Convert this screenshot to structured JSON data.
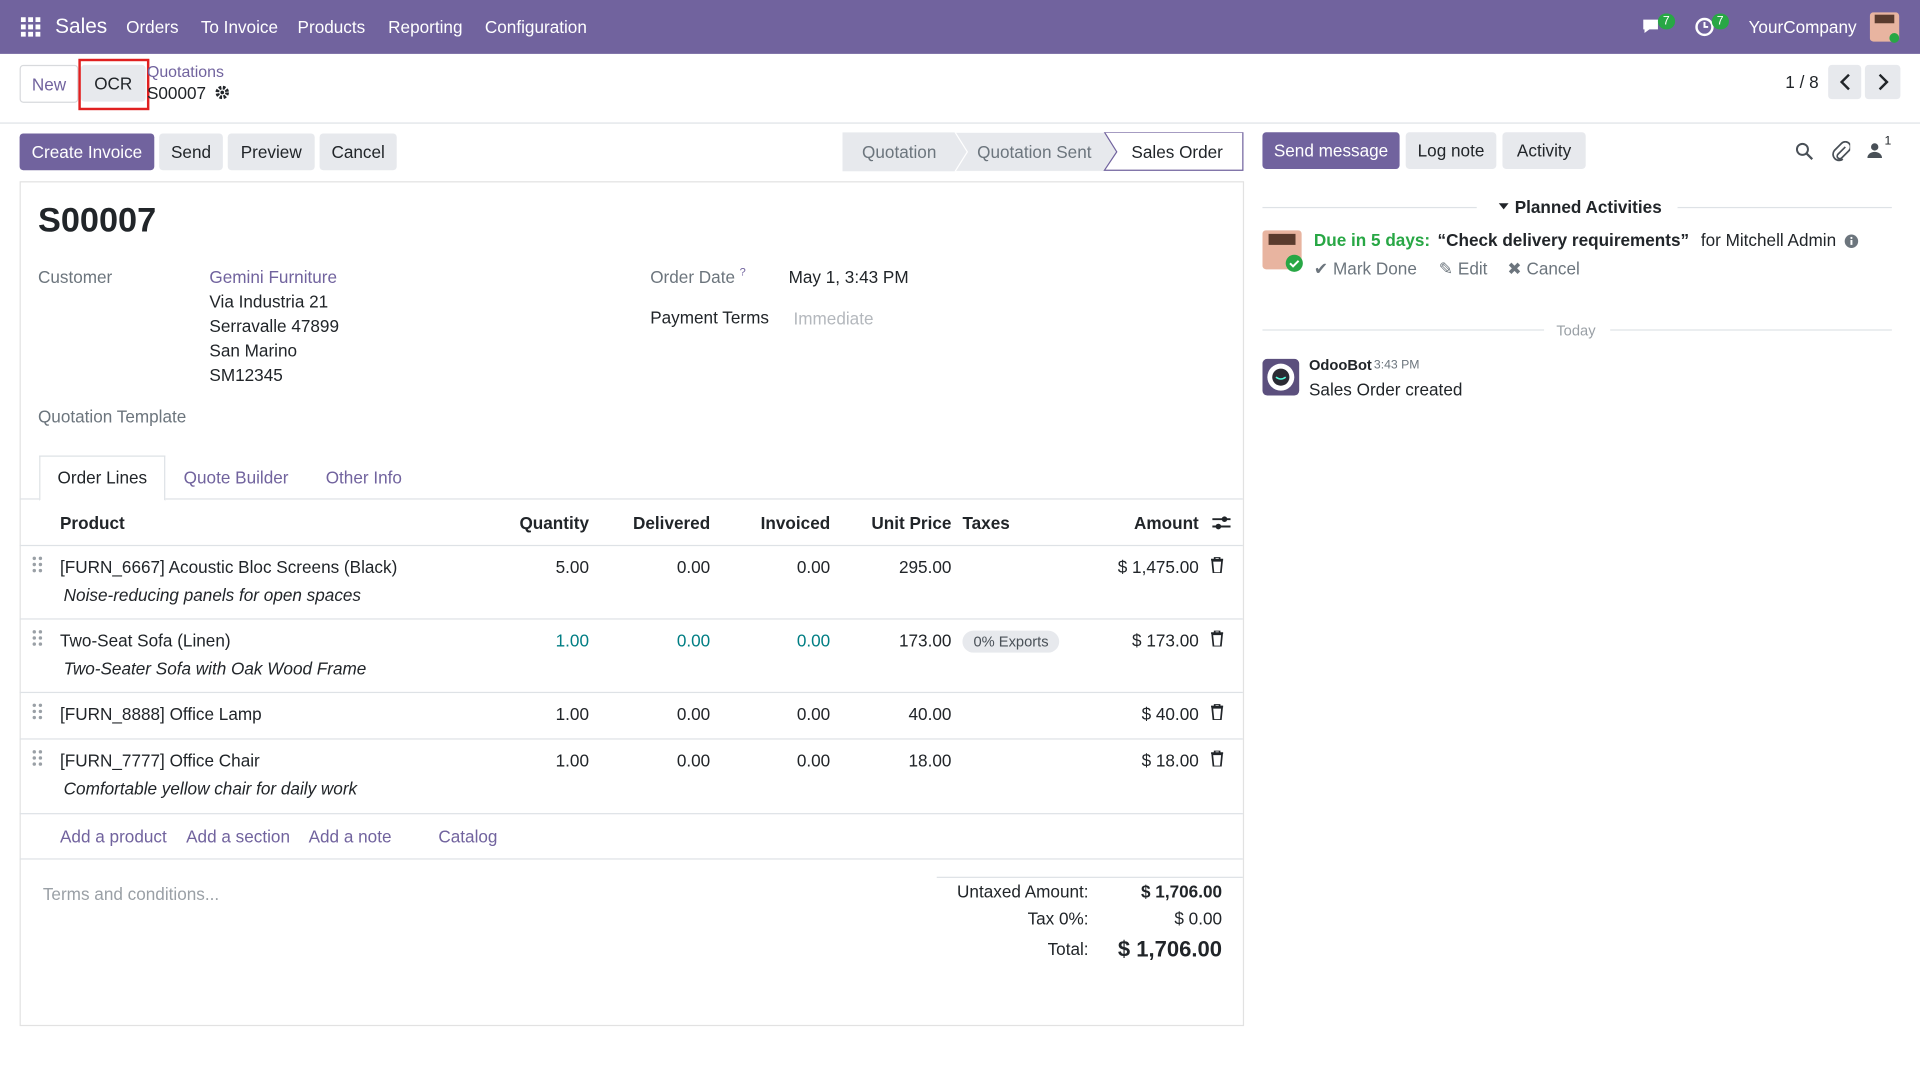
{
  "navbar": {
    "app": "Sales",
    "menu": [
      "Orders",
      "To Invoice",
      "Products",
      "Reporting",
      "Configuration"
    ],
    "messages_count": "7",
    "activities_count": "7",
    "company": "YourCompany"
  },
  "control": {
    "new": "New",
    "ocr": "OCR",
    "breadcrumb": "Quotations",
    "record": "S00007",
    "pager": "1 / 8"
  },
  "actions": {
    "buttons": [
      "Create Invoice",
      "Send",
      "Preview",
      "Cancel"
    ],
    "statuses": [
      "Quotation",
      "Quotation Sent",
      "Sales Order"
    ]
  },
  "form": {
    "title": "S00007",
    "customer_label": "Customer",
    "customer": "Gemini Furniture",
    "address": [
      "Via Industria 21",
      "Serravalle 47899",
      "San Marino",
      "SM12345"
    ],
    "order_date_label": "Order Date",
    "order_date_help": "?",
    "order_date": "May 1, 3:43 PM",
    "payment_terms_label": "Payment Terms",
    "payment_terms_placeholder": "Immediate",
    "quotation_template_label": "Quotation Template"
  },
  "tabs": [
    "Order Lines",
    "Quote Builder",
    "Other Info"
  ],
  "table": {
    "columns": [
      "Product",
      "Quantity",
      "Delivered",
      "Invoiced",
      "Unit Price",
      "Taxes",
      "Amount"
    ],
    "rows": [
      {
        "product": "[FURN_6667] Acoustic Bloc Screens (Black)",
        "description": "Noise-reducing panels for open spaces",
        "quantity": "5.00",
        "delivered": "0.00",
        "invoiced": "0.00",
        "unit_price": "295.00",
        "tax": null,
        "amount": "$ 1,475.00"
      },
      {
        "product": "Two-Seat Sofa (Linen)",
        "description": "Two-Seater Sofa with Oak Wood Frame",
        "quantity": "1.00",
        "delivered": "0.00",
        "invoiced": "0.00",
        "unit_price": "173.00",
        "tax": "0% Exports",
        "amount": "$ 173.00"
      },
      {
        "product": "[FURN_8888] Office Lamp",
        "description": null,
        "quantity": "1.00",
        "delivered": "0.00",
        "invoiced": "0.00",
        "unit_price": "40.00",
        "tax": null,
        "amount": "$ 40.00"
      },
      {
        "product": "[FURN_7777] Office Chair",
        "description": "Comfortable yellow chair for daily work",
        "quantity": "1.00",
        "delivered": "0.00",
        "invoiced": "0.00",
        "unit_price": "18.00",
        "tax": null,
        "amount": "$ 18.00"
      }
    ],
    "add_links": [
      "Add a product",
      "Add a section",
      "Add a note",
      "Catalog"
    ]
  },
  "terms_placeholder": "Terms and conditions...",
  "totals": {
    "untaxed_label": "Untaxed Amount:",
    "untaxed": "$ 1,706.00",
    "tax_label": "Tax 0%:",
    "tax": "$ 0.00",
    "total_label": "Total:",
    "total": "$ 1,706.00"
  },
  "chatter": {
    "buttons": [
      "Send message",
      "Log note",
      "Activity"
    ],
    "followers": "1",
    "planned_header": "Planned Activities",
    "activity": {
      "due": "Due in 5 days:",
      "summary": "“Check delivery requirements”",
      "assignee": "for Mitchell Admin",
      "actions": [
        "Mark Done",
        "Edit",
        "Cancel"
      ]
    },
    "separator": "Today",
    "message": {
      "author": "OdooBot",
      "time": "3:43 PM",
      "body": "Sales Order created"
    }
  }
}
